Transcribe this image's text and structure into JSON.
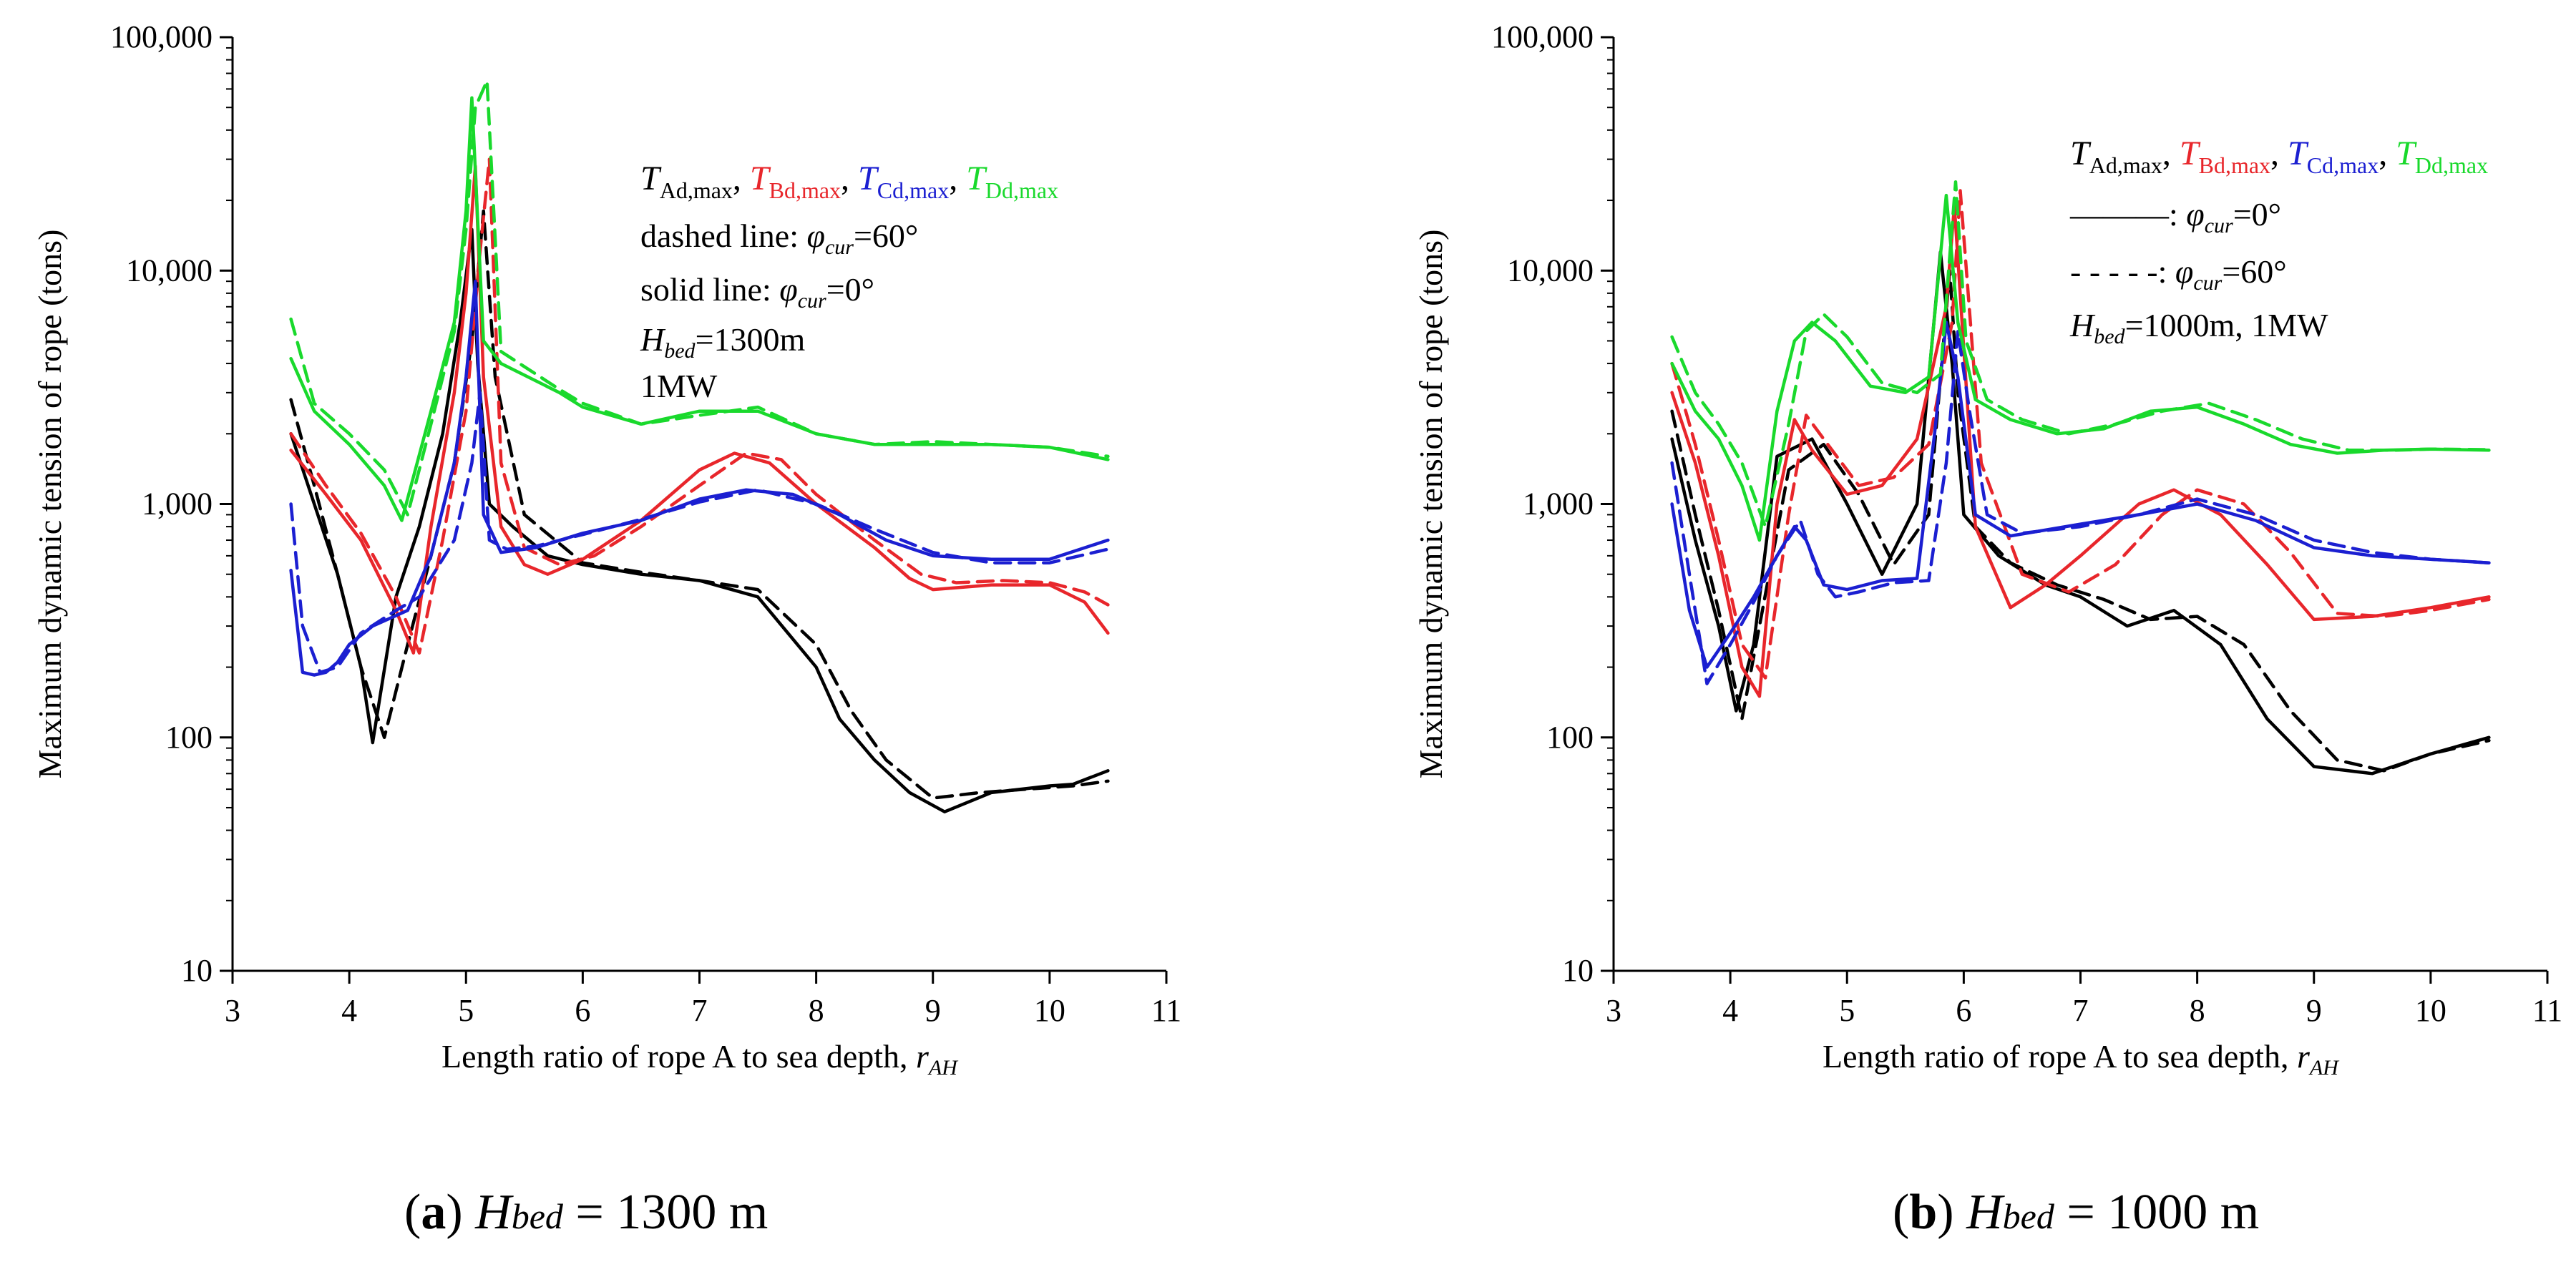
{
  "chart_data": [
    {
      "type": "line",
      "panel_label": "a",
      "caption_var": "H",
      "caption_sub": "bed",
      "caption_value": " = 1300 m",
      "xlabel": "Length ratio of rope A to sea depth, ",
      "xlabel_var": "r",
      "xlabel_sub": "AH",
      "ylabel": "Maximum dynamic tension of rope (tons)",
      "xlim": [
        3,
        11
      ],
      "ylim": [
        10,
        100000
      ],
      "yscale": "log",
      "xticks": [
        "3",
        "4",
        "5",
        "6",
        "7",
        "8",
        "9",
        "10",
        "11"
      ],
      "yticks": [
        "10",
        "100",
        "1,000",
        "10,000",
        "100,000"
      ],
      "legend": {
        "series_labels": [
          {
            "var": "T",
            "sub": "Ad,max",
            "color": "#000000"
          },
          {
            "var": "T",
            "sub": "Bd,max",
            "color": "#e8262b"
          },
          {
            "var": "T",
            "sub": "Cd,max",
            "color": "#1b1fd1"
          },
          {
            "var": "T",
            "sub": "Dd,max",
            "color": "#19d92c"
          }
        ],
        "dashed_text": "dashed line: ",
        "solid_text": "solid line: ",
        "phi": "φ",
        "phi_sub": "cur",
        "dashed_value": "=60°",
        "solid_value": "=0°",
        "hbed_var": "H",
        "hbed_sub": "bed",
        "hbed_value": "=1300m",
        "power": "1MW"
      },
      "series": [
        {
          "color": "#000000",
          "style": "solid",
          "x": [
            3.5,
            3.7,
            3.9,
            4.1,
            4.2,
            4.4,
            4.6,
            4.8,
            4.95,
            5.05,
            5.1,
            5.2,
            5.4,
            5.7,
            6.0,
            6.5,
            7.0,
            7.5,
            8.0,
            8.2,
            8.5,
            8.8,
            9.1,
            9.5,
            10.0,
            10.2,
            10.5
          ],
          "y": [
            2000,
            1000,
            500,
            200,
            95,
            400,
            800,
            2000,
            6000,
            15000,
            4000,
            1000,
            800,
            600,
            550,
            500,
            470,
            400,
            200,
            120,
            80,
            58,
            48,
            58,
            62,
            63,
            72
          ]
        },
        {
          "color": "#000000",
          "style": "dashed",
          "x": [
            3.5,
            3.7,
            3.9,
            4.1,
            4.3,
            4.5,
            4.7,
            4.9,
            5.05,
            5.15,
            5.25,
            5.5,
            6.0,
            6.5,
            7.0,
            7.5,
            8.0,
            8.3,
            8.6,
            9.0,
            9.4,
            9.8,
            10.2,
            10.5
          ],
          "y": [
            2800,
            1200,
            500,
            200,
            100,
            250,
            600,
            1500,
            5000,
            18000,
            3500,
            900,
            560,
            510,
            470,
            430,
            250,
            130,
            80,
            55,
            58,
            60,
            62,
            65
          ]
        },
        {
          "color": "#e8262b",
          "style": "solid",
          "x": [
            3.5,
            3.8,
            4.1,
            4.4,
            4.55,
            4.7,
            4.9,
            5.0,
            5.08,
            5.15,
            5.3,
            5.5,
            5.7,
            6.0,
            6.5,
            7.0,
            7.3,
            7.6,
            8.0,
            8.5,
            8.8,
            9.0,
            9.5,
            10.0,
            10.3,
            10.5
          ],
          "y": [
            1700,
            1100,
            700,
            350,
            230,
            800,
            3000,
            8000,
            28000,
            3500,
            800,
            550,
            500,
            580,
            850,
            1400,
            1650,
            1500,
            1000,
            650,
            480,
            430,
            450,
            450,
            380,
            280
          ]
        },
        {
          "color": "#e8262b",
          "style": "dashed",
          "x": [
            3.5,
            3.8,
            4.1,
            4.4,
            4.6,
            4.8,
            5.0,
            5.12,
            5.2,
            5.3,
            5.5,
            5.8,
            6.1,
            6.5,
            7.0,
            7.4,
            7.7,
            8.0,
            8.5,
            8.9,
            9.2,
            9.6,
            10.0,
            10.3,
            10.5
          ],
          "y": [
            2000,
            1200,
            750,
            400,
            230,
            700,
            2500,
            12000,
            30000,
            1500,
            650,
            550,
            600,
            800,
            1200,
            1650,
            1550,
            1100,
            700,
            500,
            460,
            470,
            460,
            420,
            370
          ]
        },
        {
          "color": "#1b1fd1",
          "style": "solid",
          "x": [
            3.5,
            3.6,
            3.7,
            3.8,
            3.9,
            4.0,
            4.2,
            4.5,
            4.7,
            4.9,
            5.0,
            5.08,
            5.15,
            5.3,
            5.6,
            6.0,
            6.5,
            7.0,
            7.4,
            7.8,
            8.2,
            8.6,
            9.0,
            9.5,
            10.0,
            10.5
          ],
          "y": [
            520,
            190,
            185,
            190,
            210,
            250,
            300,
            350,
            600,
            1500,
            3500,
            9000,
            900,
            620,
            650,
            750,
            850,
            1050,
            1150,
            1100,
            900,
            700,
            600,
            580,
            580,
            700
          ]
        },
        {
          "color": "#1b1fd1",
          "style": "dashed",
          "x": [
            3.5,
            3.6,
            3.75,
            3.9,
            4.1,
            4.4,
            4.6,
            4.9,
            5.05,
            5.12,
            5.2,
            5.35,
            5.6,
            6.0,
            6.5,
            7.0,
            7.5,
            8.0,
            8.5,
            9.0,
            9.5,
            10.0,
            10.5
          ],
          "y": [
            1000,
            300,
            190,
            200,
            280,
            350,
            400,
            700,
            1500,
            3000,
            700,
            640,
            660,
            740,
            860,
            1020,
            1150,
            1000,
            780,
            620,
            560,
            560,
            640
          ]
        },
        {
          "color": "#19d92c",
          "style": "solid",
          "x": [
            3.5,
            3.7,
            4.0,
            4.3,
            4.45,
            4.7,
            4.9,
            5.0,
            5.05,
            5.15,
            5.3,
            5.8,
            6.0,
            6.5,
            7.0,
            7.5,
            8.0,
            8.5,
            9.0,
            9.5,
            10.0,
            10.5
          ],
          "y": [
            4200,
            2500,
            1800,
            1200,
            850,
            2500,
            6000,
            18000,
            55000,
            5000,
            4000,
            3000,
            2600,
            2200,
            2500,
            2500,
            2000,
            1800,
            1800,
            1800,
            1750,
            1550
          ]
        },
        {
          "color": "#19d92c",
          "style": "dashed",
          "x": [
            3.5,
            3.7,
            4.0,
            4.3,
            4.5,
            4.7,
            4.9,
            5.0,
            5.08,
            5.18,
            5.3,
            5.8,
            6.0,
            6.5,
            7.0,
            7.5,
            8.0,
            8.5,
            9.0,
            9.5,
            10.0,
            10.5
          ],
          "y": [
            6200,
            2700,
            2000,
            1400,
            900,
            2200,
            5500,
            15000,
            50000,
            65000,
            4500,
            3100,
            2700,
            2200,
            2400,
            2600,
            2000,
            1800,
            1850,
            1800,
            1750,
            1600
          ]
        }
      ]
    },
    {
      "type": "line",
      "panel_label": "b",
      "caption_var": "H",
      "caption_sub": "bed",
      "caption_value": " = 1000 m",
      "xlabel": "Length ratio of rope A to sea depth, ",
      "xlabel_var": "r",
      "xlabel_sub": "AH",
      "ylabel": "Maximum dynamic tension of rope (tons)",
      "xlim": [
        3,
        11
      ],
      "ylim": [
        10,
        100000
      ],
      "yscale": "log",
      "xticks": [
        "3",
        "4",
        "5",
        "6",
        "7",
        "8",
        "9",
        "10",
        "11"
      ],
      "yticks": [
        "10",
        "100",
        "1,000",
        "10,000",
        "100,000"
      ],
      "legend": {
        "series_labels": [
          {
            "var": "T",
            "sub": "Ad,max",
            "color": "#000000"
          },
          {
            "var": "T",
            "sub": "Bd,max",
            "color": "#e8262b"
          },
          {
            "var": "T",
            "sub": "Cd,max",
            "color": "#1b1fd1"
          },
          {
            "var": "T",
            "sub": "Dd,max",
            "color": "#19d92c"
          }
        ],
        "solid_key": "———: ",
        "dashed_key": "- - - - -: ",
        "phi": "φ",
        "phi_sub": "cur",
        "solid_value": "=0°",
        "dashed_value": "=60°",
        "hbed_var": "H",
        "hbed_sub": "bed",
        "hbed_value": "=1000m, 1MW"
      },
      "series": [
        {
          "color": "#000000",
          "style": "solid",
          "x": [
            3.5,
            3.7,
            3.9,
            4.05,
            4.2,
            4.4,
            4.7,
            5.0,
            5.3,
            5.6,
            5.8,
            5.9,
            6.0,
            6.3,
            6.7,
            7.0,
            7.4,
            7.8,
            8.2,
            8.6,
            9.0,
            9.5,
            10.0,
            10.5
          ],
          "y": [
            1900,
            700,
            300,
            130,
            250,
            1600,
            1900,
            1000,
            500,
            1000,
            12000,
            4000,
            900,
            600,
            450,
            400,
            300,
            350,
            250,
            120,
            75,
            70,
            85,
            100
          ]
        },
        {
          "color": "#000000",
          "style": "dashed",
          "x": [
            3.5,
            3.7,
            3.9,
            4.1,
            4.25,
            4.5,
            4.8,
            5.1,
            5.4,
            5.7,
            5.88,
            5.95,
            6.1,
            6.4,
            6.8,
            7.2,
            7.6,
            8.0,
            8.4,
            8.8,
            9.2,
            9.6,
            10.0,
            10.5
          ],
          "y": [
            2500,
            900,
            350,
            120,
            300,
            1400,
            1800,
            1100,
            550,
            900,
            10000,
            3000,
            800,
            560,
            450,
            390,
            320,
            330,
            250,
            130,
            80,
            72,
            85,
            97
          ]
        },
        {
          "color": "#e8262b",
          "style": "solid",
          "x": [
            3.5,
            3.7,
            3.9,
            4.1,
            4.25,
            4.4,
            4.55,
            4.7,
            5.0,
            5.3,
            5.6,
            5.85,
            5.92,
            6.1,
            6.4,
            6.7,
            7.0,
            7.5,
            7.8,
            8.2,
            8.6,
            9.0,
            9.5,
            10.0,
            10.5
          ],
          "y": [
            3000,
            1500,
            600,
            200,
            150,
            1000,
            2300,
            1700,
            1100,
            1200,
            1900,
            7000,
            19000,
            800,
            360,
            450,
            600,
            1000,
            1150,
            900,
            550,
            320,
            330,
            360,
            400
          ]
        },
        {
          "color": "#e8262b",
          "style": "dashed",
          "x": [
            3.5,
            3.7,
            3.9,
            4.1,
            4.3,
            4.5,
            4.65,
            4.8,
            5.1,
            5.4,
            5.7,
            5.9,
            5.97,
            6.15,
            6.5,
            6.9,
            7.3,
            7.7,
            8.0,
            8.4,
            8.8,
            9.2,
            9.6,
            10.0,
            10.5
          ],
          "y": [
            4000,
            1800,
            700,
            250,
            180,
            900,
            2400,
            1900,
            1200,
            1300,
            1800,
            6000,
            22000,
            1500,
            500,
            420,
            550,
            900,
            1150,
            1000,
            620,
            340,
            330,
            350,
            390
          ]
        },
        {
          "color": "#1b1fd1",
          "style": "solid",
          "x": [
            3.5,
            3.65,
            3.8,
            4.0,
            4.2,
            4.4,
            4.55,
            4.65,
            4.8,
            5.0,
            5.3,
            5.6,
            5.75,
            5.85,
            5.95,
            6.1,
            6.4,
            7.0,
            7.5,
            8.0,
            8.5,
            9.0,
            9.5,
            10.0,
            10.5
          ],
          "y": [
            1000,
            350,
            200,
            280,
            400,
            600,
            800,
            700,
            450,
            430,
            470,
            480,
            2000,
            6000,
            3500,
            900,
            730,
            820,
            900,
            1000,
            850,
            650,
            600,
            580,
            560
          ]
        },
        {
          "color": "#1b1fd1",
          "style": "dashed",
          "x": [
            3.5,
            3.65,
            3.8,
            4.0,
            4.2,
            4.4,
            4.6,
            4.75,
            4.9,
            5.1,
            5.4,
            5.7,
            5.85,
            5.95,
            6.05,
            6.2,
            6.5,
            7.0,
            7.5,
            8.0,
            8.5,
            9.0,
            9.5,
            10.0,
            10.5
          ],
          "y": [
            1500,
            500,
            170,
            250,
            380,
            600,
            850,
            500,
            400,
            420,
            460,
            470,
            1500,
            5500,
            2500,
            900,
            750,
            800,
            900,
            1050,
            900,
            700,
            620,
            580,
            560
          ]
        },
        {
          "color": "#19d92c",
          "style": "solid",
          "x": [
            3.5,
            3.7,
            3.9,
            4.1,
            4.25,
            4.4,
            4.55,
            4.7,
            4.9,
            5.2,
            5.5,
            5.7,
            5.85,
            5.95,
            6.1,
            6.4,
            6.8,
            7.2,
            7.6,
            8.0,
            8.4,
            8.8,
            9.2,
            9.6,
            10.0,
            10.5
          ],
          "y": [
            4000,
            2500,
            1900,
            1200,
            700,
            2500,
            5000,
            6000,
            5000,
            3200,
            3000,
            3500,
            21000,
            6000,
            2800,
            2300,
            2000,
            2100,
            2500,
            2600,
            2200,
            1800,
            1650,
            1700,
            1720,
            1700
          ]
        },
        {
          "color": "#19d92c",
          "style": "dashed",
          "x": [
            3.5,
            3.7,
            3.9,
            4.1,
            4.3,
            4.5,
            4.65,
            4.8,
            5.0,
            5.3,
            5.6,
            5.8,
            5.93,
            6.02,
            6.2,
            6.5,
            6.9,
            7.3,
            7.7,
            8.1,
            8.5,
            8.9,
            9.3,
            9.7,
            10.0,
            10.5
          ],
          "y": [
            5200,
            3000,
            2200,
            1500,
            800,
            2200,
            5500,
            6500,
            5200,
            3300,
            3000,
            3600,
            24000,
            5000,
            2800,
            2300,
            2000,
            2200,
            2500,
            2700,
            2300,
            1900,
            1700,
            1700,
            1720,
            1710
          ]
        }
      ]
    }
  ]
}
